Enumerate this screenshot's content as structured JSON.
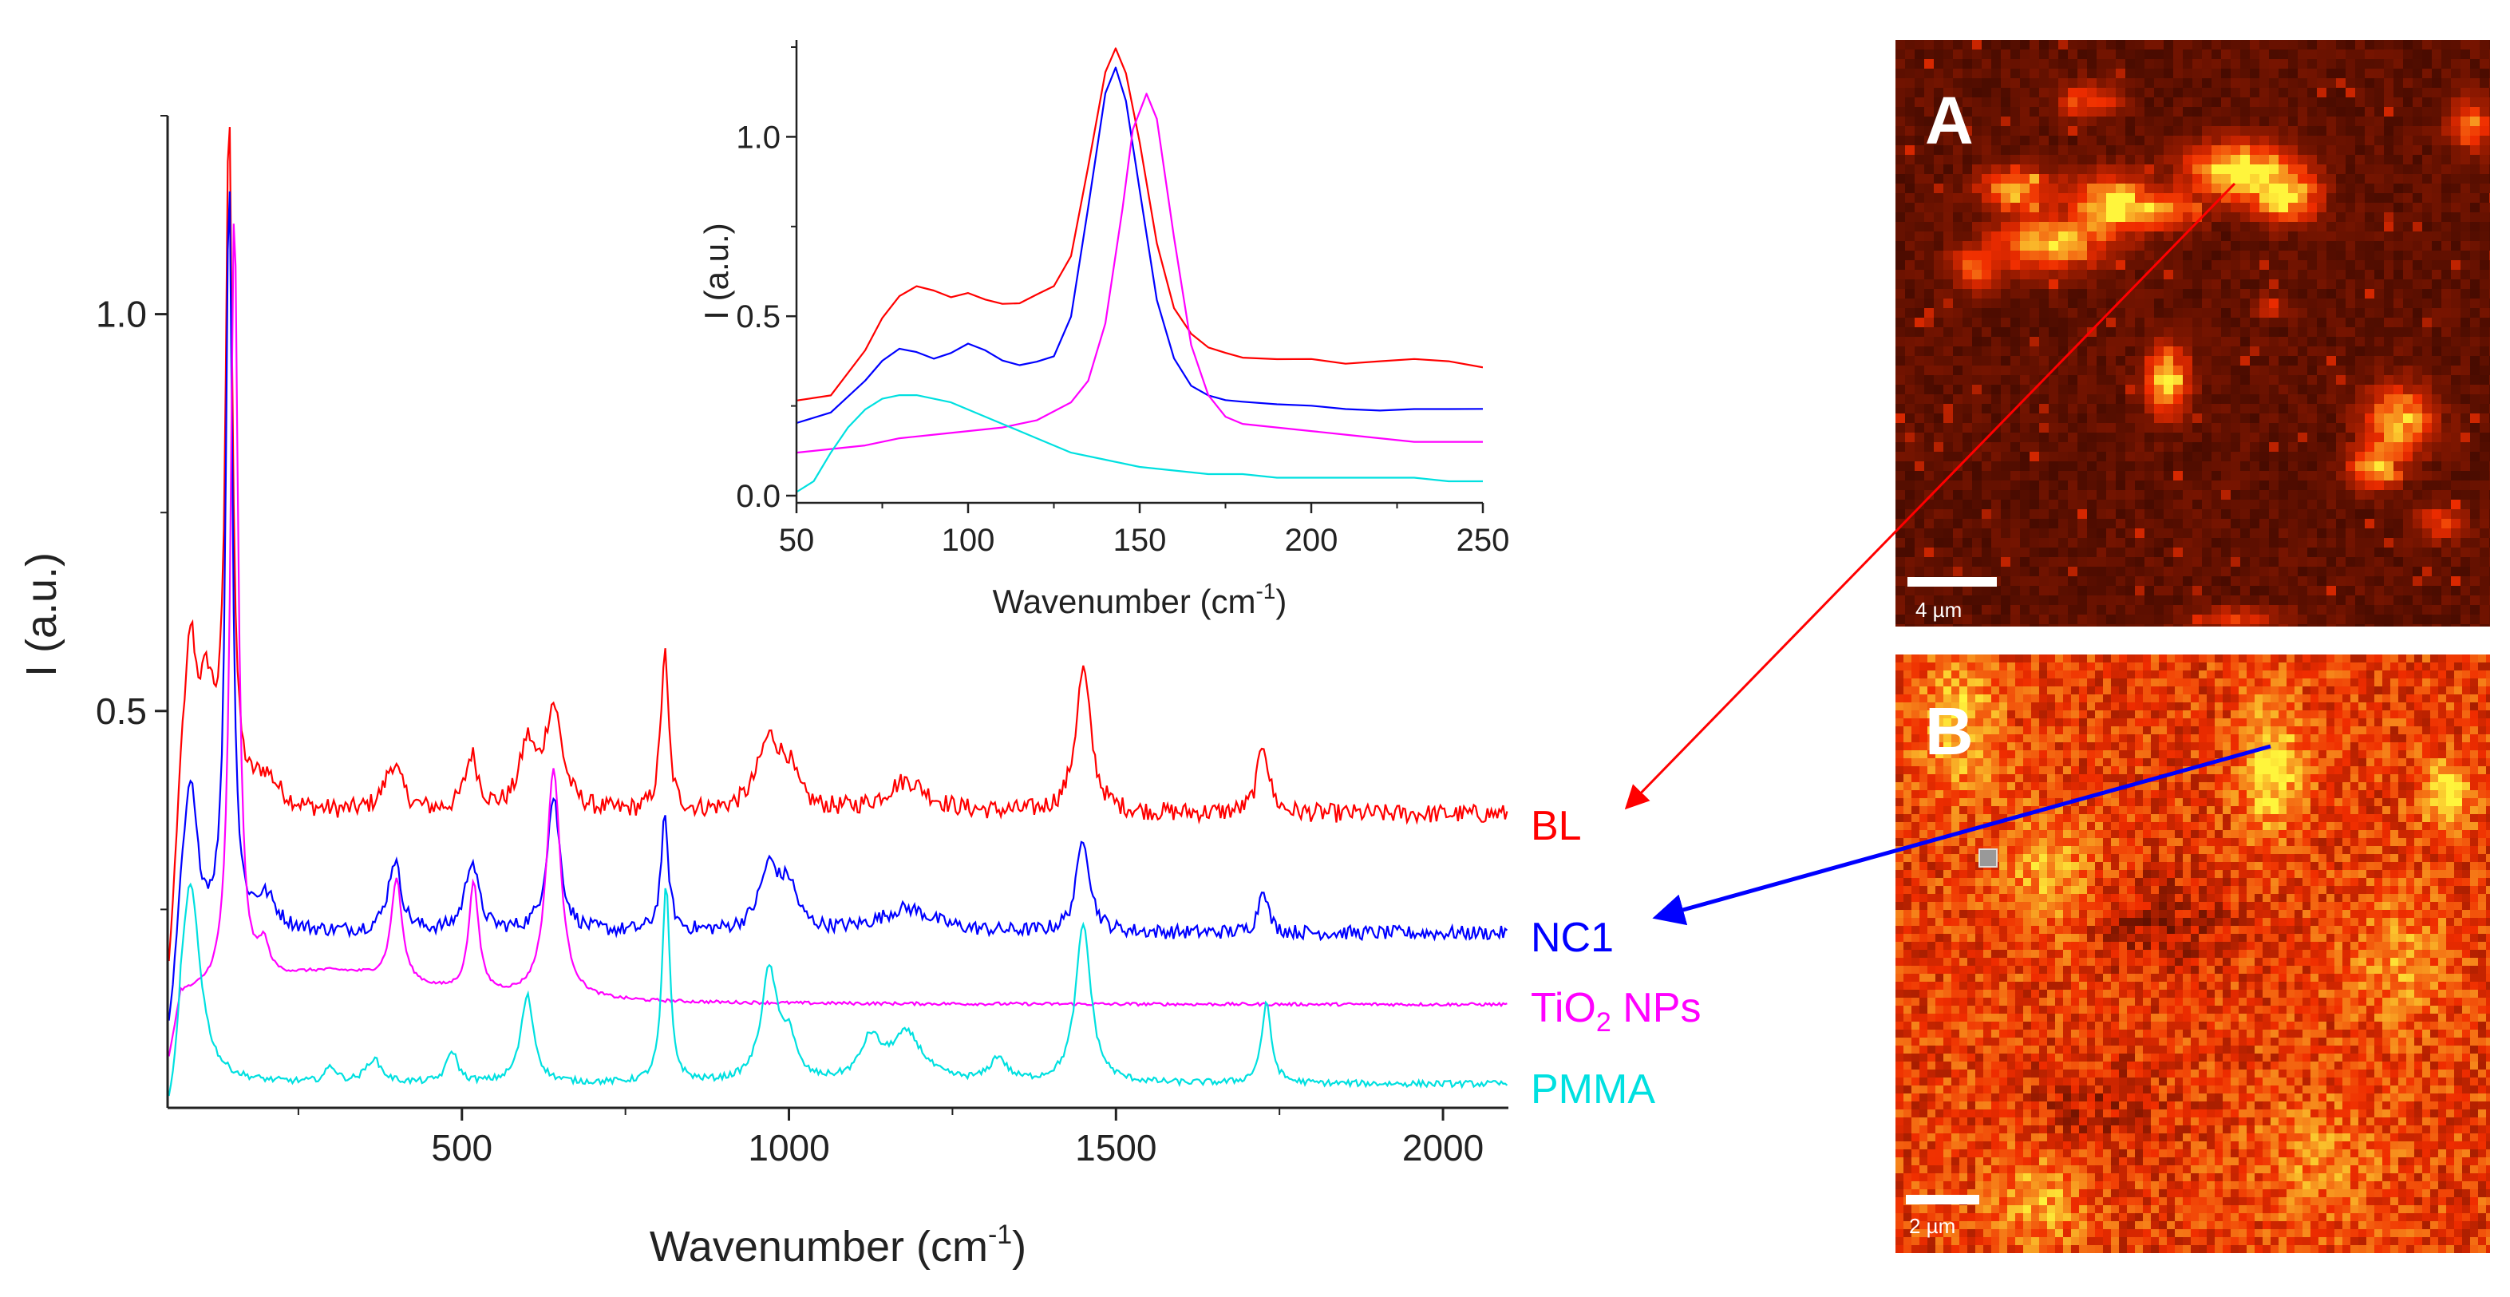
{
  "chart_data": [
    {
      "type": "line",
      "id": "main",
      "title": "",
      "xlabel": "Wavenumber (cm",
      "xlabel_sup": "-1",
      "xlabel_close": ")",
      "ylabel": "I (a.u.)",
      "xlim": [
        50,
        2100
      ],
      "ylim": [
        0.0,
        1.25
      ],
      "xticks": [
        500,
        1000,
        1500,
        2000
      ],
      "yticks": [
        0.5,
        1.0
      ],
      "xtick_labels": [
        "500",
        "1000",
        "1500",
        "2000"
      ],
      "ytick_labels": [
        "0.5",
        "1.0"
      ],
      "series": [
        {
          "name": "BL",
          "color": "#ff0000",
          "baseline": 0.37,
          "peaks": [
            [
              85,
              0.19,
              10
            ],
            [
              110,
              0.14,
              16
            ],
            [
              144,
              0.86,
              6
            ],
            [
              200,
              0.04,
              25
            ],
            [
              395,
              0.06,
              16
            ],
            [
              515,
              0.07,
              12
            ],
            [
              600,
              0.08,
              14
            ],
            [
              640,
              0.13,
              16
            ],
            [
              810,
              0.2,
              7
            ],
            [
              970,
              0.09,
              22
            ],
            [
              1000,
              0.04,
              15
            ],
            [
              1180,
              0.04,
              40
            ],
            [
              1450,
              0.18,
              14
            ],
            [
              1725,
              0.09,
              10
            ]
          ],
          "noise": 0.012
        },
        {
          "name": "NC1",
          "color": "#0000ff",
          "baseline": 0.22,
          "peaks": [
            [
              85,
              0.18,
              12
            ],
            [
              144,
              0.95,
              6
            ],
            [
              200,
              0.04,
              20
            ],
            [
              397,
              0.09,
              12
            ],
            [
              515,
              0.09,
              12
            ],
            [
              640,
              0.17,
              12
            ],
            [
              810,
              0.14,
              7
            ],
            [
              970,
              0.08,
              18
            ],
            [
              1000,
              0.05,
              15
            ],
            [
              1180,
              0.03,
              50
            ],
            [
              1450,
              0.12,
              12
            ],
            [
              1725,
              0.06,
              8
            ]
          ],
          "noise": 0.009
        },
        {
          "name": "TiO₂ NPs",
          "color": "#ff00ff",
          "baseline": 0.13,
          "peaks": [
            [
              152,
              0.98,
              7
            ],
            [
              197,
              0.04,
              10
            ],
            [
              400,
              0.13,
              10
            ],
            [
              518,
              0.14,
              9
            ],
            [
              640,
              0.29,
              13
            ],
            [
              300,
              0.04,
              150
            ]
          ],
          "noise": 0.002
        },
        {
          "name": "PMMA",
          "color": "#00e0e0",
          "baseline": 0.03,
          "peaks": [
            [
              85,
              0.25,
              18
            ],
            [
              300,
              0.02,
              10
            ],
            [
              365,
              0.03,
              14
            ],
            [
              485,
              0.04,
              10
            ],
            [
              600,
              0.11,
              12
            ],
            [
              812,
              0.25,
              7
            ],
            [
              970,
              0.14,
              15
            ],
            [
              1000,
              0.05,
              12
            ],
            [
              1125,
              0.05,
              18
            ],
            [
              1180,
              0.06,
              30
            ],
            [
              1320,
              0.03,
              15
            ],
            [
              1450,
              0.2,
              14
            ],
            [
              1730,
              0.1,
              9
            ]
          ],
          "noise": 0.004
        }
      ],
      "legend": [
        "BL",
        "NC1",
        "TiO",
        "PMMA"
      ],
      "legend_placement": "right, beside each trace"
    },
    {
      "type": "line",
      "id": "inset",
      "title": "",
      "xlabel": "Wavenumber (cm",
      "xlabel_sup": "-1",
      "xlabel_close": ")",
      "ylabel": "I (a.u.)",
      "xlim": [
        50,
        250
      ],
      "ylim": [
        -0.02,
        1.27
      ],
      "xticks": [
        50,
        100,
        150,
        200,
        250
      ],
      "yticks": [
        0.0,
        0.5,
        1.0
      ],
      "xtick_labels": [
        "50",
        "100",
        "150",
        "200",
        "250"
      ],
      "ytick_labels": [
        "0.0",
        "0.5",
        "1.0"
      ],
      "series": [
        {
          "name": "BL",
          "color": "#ff0000",
          "x": [
            50,
            60,
            70,
            75,
            80,
            85,
            90,
            95,
            100,
            105,
            110,
            115,
            120,
            125,
            130,
            135,
            140,
            143,
            146,
            150,
            155,
            160,
            165,
            170,
            175,
            180,
            190,
            200,
            210,
            220,
            230,
            240,
            250
          ],
          "y": [
            0.27,
            0.28,
            0.4,
            0.5,
            0.56,
            0.58,
            0.57,
            0.55,
            0.56,
            0.55,
            0.53,
            0.54,
            0.56,
            0.58,
            0.67,
            0.92,
            1.18,
            1.25,
            1.18,
            0.98,
            0.7,
            0.52,
            0.45,
            0.41,
            0.4,
            0.38,
            0.38,
            0.38,
            0.37,
            0.37,
            0.38,
            0.37,
            0.36
          ]
        },
        {
          "name": "NC1",
          "color": "#0000ff",
          "x": [
            50,
            60,
            70,
            75,
            80,
            85,
            90,
            95,
            100,
            105,
            110,
            115,
            120,
            125,
            130,
            135,
            140,
            143,
            146,
            150,
            155,
            160,
            165,
            170,
            175,
            180,
            190,
            200,
            210,
            220,
            230,
            240,
            250
          ],
          "y": [
            0.2,
            0.23,
            0.32,
            0.38,
            0.41,
            0.4,
            0.38,
            0.4,
            0.42,
            0.4,
            0.38,
            0.36,
            0.37,
            0.39,
            0.5,
            0.8,
            1.12,
            1.19,
            1.1,
            0.85,
            0.55,
            0.38,
            0.31,
            0.28,
            0.27,
            0.26,
            0.25,
            0.25,
            0.24,
            0.24,
            0.24,
            0.24,
            0.24
          ]
        },
        {
          "name": "TiO₂ NPs",
          "color": "#ff00ff",
          "x": [
            50,
            60,
            70,
            80,
            90,
            100,
            110,
            120,
            130,
            135,
            140,
            145,
            148,
            152,
            155,
            160,
            165,
            170,
            175,
            180,
            190,
            200,
            210,
            220,
            230,
            240,
            250
          ],
          "y": [
            0.12,
            0.13,
            0.14,
            0.16,
            0.17,
            0.18,
            0.19,
            0.21,
            0.26,
            0.32,
            0.48,
            0.8,
            1.02,
            1.12,
            1.05,
            0.72,
            0.42,
            0.28,
            0.22,
            0.2,
            0.19,
            0.18,
            0.17,
            0.16,
            0.15,
            0.15,
            0.15
          ]
        },
        {
          "name": "PMMA",
          "color": "#00e0e0",
          "x": [
            50,
            55,
            60,
            65,
            70,
            75,
            80,
            85,
            90,
            95,
            100,
            110,
            120,
            130,
            140,
            150,
            160,
            170,
            180,
            190,
            200,
            210,
            220,
            230,
            240,
            250
          ],
          "y": [
            0.01,
            0.04,
            0.12,
            0.19,
            0.24,
            0.27,
            0.28,
            0.28,
            0.27,
            0.26,
            0.24,
            0.2,
            0.16,
            0.12,
            0.1,
            0.08,
            0.07,
            0.06,
            0.06,
            0.05,
            0.05,
            0.05,
            0.05,
            0.05,
            0.04,
            0.04
          ]
        }
      ]
    }
  ],
  "images": {
    "A": {
      "label": "A",
      "scalebar": "4 µm"
    },
    "B": {
      "label": "B",
      "scalebar": "2 µm"
    }
  },
  "colors": {
    "arrow_A": "#ff0000",
    "arrow_B": "#0000ff",
    "map_dark": "#2a0500",
    "map_mid": "#8a2a00",
    "map_bright": "#ffd020"
  }
}
